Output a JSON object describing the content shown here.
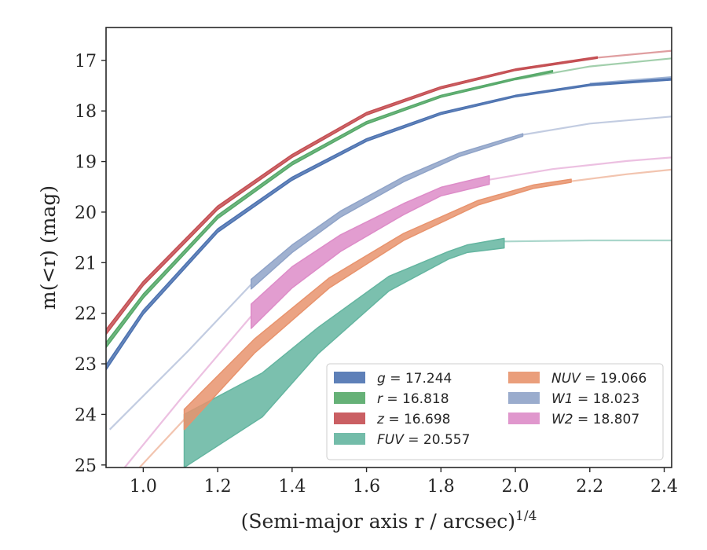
{
  "chart_data": {
    "type": "line",
    "xlabel": "(Semi-major axis r / arcsec)",
    "xlabel_superscript": "1/4",
    "ylabel": "m(<r) (mag)",
    "xlim": [
      0.9,
      2.42
    ],
    "ylim": [
      25.05,
      16.35
    ],
    "y_inverted": true,
    "x_ticks": [
      "1.0",
      "1.2",
      "1.4",
      "1.6",
      "1.8",
      "2.0",
      "2.2",
      "2.4"
    ],
    "y_ticks": [
      "17",
      "18",
      "19",
      "20",
      "21",
      "22",
      "23",
      "24",
      "25"
    ],
    "grid": false,
    "legend_position": "lower-right",
    "legend_columns": 2,
    "series": [
      {
        "name": "g = 17.244",
        "var": "g",
        "total": "17.244",
        "color": "#4c72b0",
        "band": [
          [
            0.9,
            23.12,
            23.02
          ],
          [
            1.0,
            22.02,
            21.94
          ],
          [
            1.2,
            20.4,
            20.33
          ],
          [
            1.4,
            19.37,
            19.31
          ],
          [
            1.6,
            18.6,
            18.55
          ],
          [
            1.8,
            18.07,
            18.03
          ],
          [
            2.0,
            17.72,
            17.69
          ],
          [
            2.2,
            17.5,
            17.47
          ],
          [
            2.42,
            17.39,
            17.36
          ]
        ],
        "model": [
          [
            2.2,
            17.46
          ],
          [
            2.42,
            17.33
          ]
        ]
      },
      {
        "name": "r = 16.818",
        "var": "r",
        "total": "16.818",
        "color": "#55a868",
        "band": [
          [
            0.9,
            22.68,
            22.58
          ],
          [
            1.0,
            21.7,
            21.62
          ],
          [
            1.2,
            20.13,
            20.06
          ],
          [
            1.4,
            19.07,
            19.01
          ],
          [
            1.6,
            18.26,
            18.21
          ],
          [
            1.8,
            17.73,
            17.69
          ],
          [
            2.0,
            17.38,
            17.35
          ],
          [
            2.1,
            17.23,
            17.2
          ]
        ],
        "model": [
          [
            2.0,
            17.38
          ],
          [
            2.2,
            17.12
          ],
          [
            2.42,
            16.96
          ]
        ]
      },
      {
        "name": "z = 16.698",
        "var": "z",
        "total": "16.698",
        "color": "#c44e52",
        "band": [
          [
            0.9,
            22.42,
            22.32
          ],
          [
            1.0,
            21.45,
            21.37
          ],
          [
            1.2,
            19.95,
            19.88
          ],
          [
            1.4,
            18.92,
            18.86
          ],
          [
            1.6,
            18.08,
            18.03
          ],
          [
            1.8,
            17.56,
            17.52
          ],
          [
            2.0,
            17.2,
            17.17
          ],
          [
            2.22,
            16.96,
            16.93
          ]
        ],
        "model": [
          [
            2.0,
            17.18
          ],
          [
            2.2,
            16.96
          ],
          [
            2.42,
            16.81
          ]
        ]
      },
      {
        "name": "FUV = 20.557",
        "var": "FUV",
        "total": "20.557",
        "color": "#64b5a0",
        "band": [
          [
            1.11,
            25.05,
            24.0
          ],
          [
            1.32,
            24.05,
            23.18
          ],
          [
            1.47,
            22.8,
            22.28
          ],
          [
            1.66,
            21.56,
            21.27
          ],
          [
            1.82,
            20.93,
            20.78
          ],
          [
            1.87,
            20.8,
            20.65
          ],
          [
            1.97,
            20.71,
            20.52
          ]
        ],
        "model": [
          [
            1.97,
            20.58
          ],
          [
            2.2,
            20.56
          ],
          [
            2.42,
            20.56
          ]
        ]
      },
      {
        "name": "NUV = 19.066",
        "var": "NUV",
        "total": "19.066",
        "color": "#e8936d",
        "band": [
          [
            1.11,
            24.3,
            23.9
          ],
          [
            1.3,
            22.78,
            22.5
          ],
          [
            1.5,
            21.5,
            21.3
          ],
          [
            1.7,
            20.56,
            20.42
          ],
          [
            1.9,
            19.86,
            19.77
          ],
          [
            2.05,
            19.53,
            19.46
          ],
          [
            2.15,
            19.41,
            19.35
          ]
        ],
        "model": [
          [
            1.11,
            24.1
          ],
          [
            0.99,
            25.05
          ]
        ],
        "model_tail": [
          [
            2.15,
            19.39
          ],
          [
            2.3,
            19.25
          ],
          [
            2.42,
            19.16
          ]
        ]
      },
      {
        "name": "W1 = 18.023",
        "var": "W1",
        "total": "18.023",
        "color": "#8fa3c8",
        "band": [
          [
            1.29,
            21.52,
            21.33
          ],
          [
            1.4,
            20.8,
            20.65
          ],
          [
            1.53,
            20.1,
            19.98
          ],
          [
            1.7,
            19.4,
            19.3
          ],
          [
            1.85,
            18.9,
            18.83
          ],
          [
            2.02,
            18.5,
            18.45
          ]
        ],
        "model": [
          [
            1.29,
            21.43
          ],
          [
            1.12,
            22.75
          ],
          [
            0.91,
            24.3
          ]
        ],
        "model_tail": [
          [
            2.02,
            18.47
          ],
          [
            2.2,
            18.25
          ],
          [
            2.42,
            18.11
          ]
        ]
      },
      {
        "name": "W2 = 18.807",
        "var": "W2",
        "total": "18.807",
        "color": "#dd8cc8",
        "band": [
          [
            1.29,
            22.3,
            21.82
          ],
          [
            1.4,
            21.5,
            21.08
          ],
          [
            1.53,
            20.78,
            20.45
          ],
          [
            1.7,
            20.05,
            19.83
          ],
          [
            1.8,
            19.68,
            19.51
          ],
          [
            1.93,
            19.45,
            19.28
          ]
        ],
        "model": [
          [
            1.29,
            22.06
          ],
          [
            1.1,
            23.7
          ],
          [
            0.95,
            25.05
          ]
        ],
        "model_tail": [
          [
            1.93,
            19.36
          ],
          [
            2.1,
            19.15
          ],
          [
            2.3,
            18.99
          ],
          [
            2.42,
            18.92
          ]
        ]
      }
    ]
  }
}
